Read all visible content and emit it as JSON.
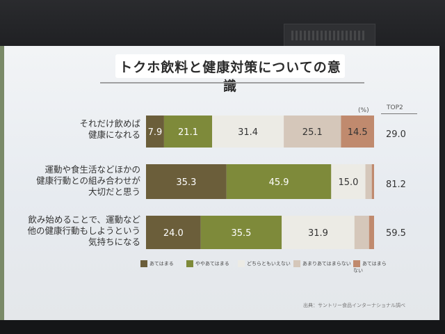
{
  "title": "トクホ飲料と健康対策についての意識",
  "unit_label": "(%)",
  "top2_header": "TOP2",
  "source": "出典：サントリー食品インターナショナル調べ",
  "chart_data": {
    "type": "bar",
    "orientation": "horizontal",
    "stacked": "100%",
    "categories": [
      "それだけ飲めば健康になれる",
      "運動や食生活などほかの健康行動との組み合わせが大切だと思う",
      "飲み始めることで、運動など他の健康行動もしようという気持ちになる"
    ],
    "category_lines": [
      [
        "それだけ飲めば",
        "健康になれる"
      ],
      [
        "運動や食生活などほかの",
        "健康行動との組み合わせが",
        "大切だと思う"
      ],
      [
        "飲み始めることで、運動など",
        "他の健康行動もしようという",
        "気持ちになる"
      ]
    ],
    "series": [
      {
        "name": "あてはまる",
        "color": "#6b5e3a",
        "values": [
          7.9,
          35.3,
          24.0
        ],
        "labels": [
          "7.9",
          "35.3",
          "24.0"
        ]
      },
      {
        "name": "ややあてはまる",
        "color": "#7e8a3a",
        "values": [
          21.1,
          45.9,
          35.5
        ],
        "labels": [
          "21.1",
          "45.9",
          "35.5"
        ]
      },
      {
        "name": "どちらともいえない",
        "color": "#ecebe5",
        "values": [
          31.4,
          15.0,
          31.9
        ],
        "labels": [
          "31.4",
          "15.0",
          "31.9"
        ]
      },
      {
        "name": "あまりあてはまらない",
        "color": "#d5c7ba",
        "values": [
          25.1,
          2.8,
          6.4
        ],
        "labels": [
          "25.1",
          "",
          ""
        ]
      },
      {
        "name": "あてはまらない",
        "color": "#c08a6e",
        "values": [
          14.5,
          1.0,
          2.2
        ],
        "labels": [
          "14.5",
          "",
          ""
        ]
      }
    ],
    "top2": [
      "29.0",
      "81.2",
      "59.5"
    ],
    "xlim": [
      0,
      100
    ],
    "legend_position": "bottom"
  }
}
